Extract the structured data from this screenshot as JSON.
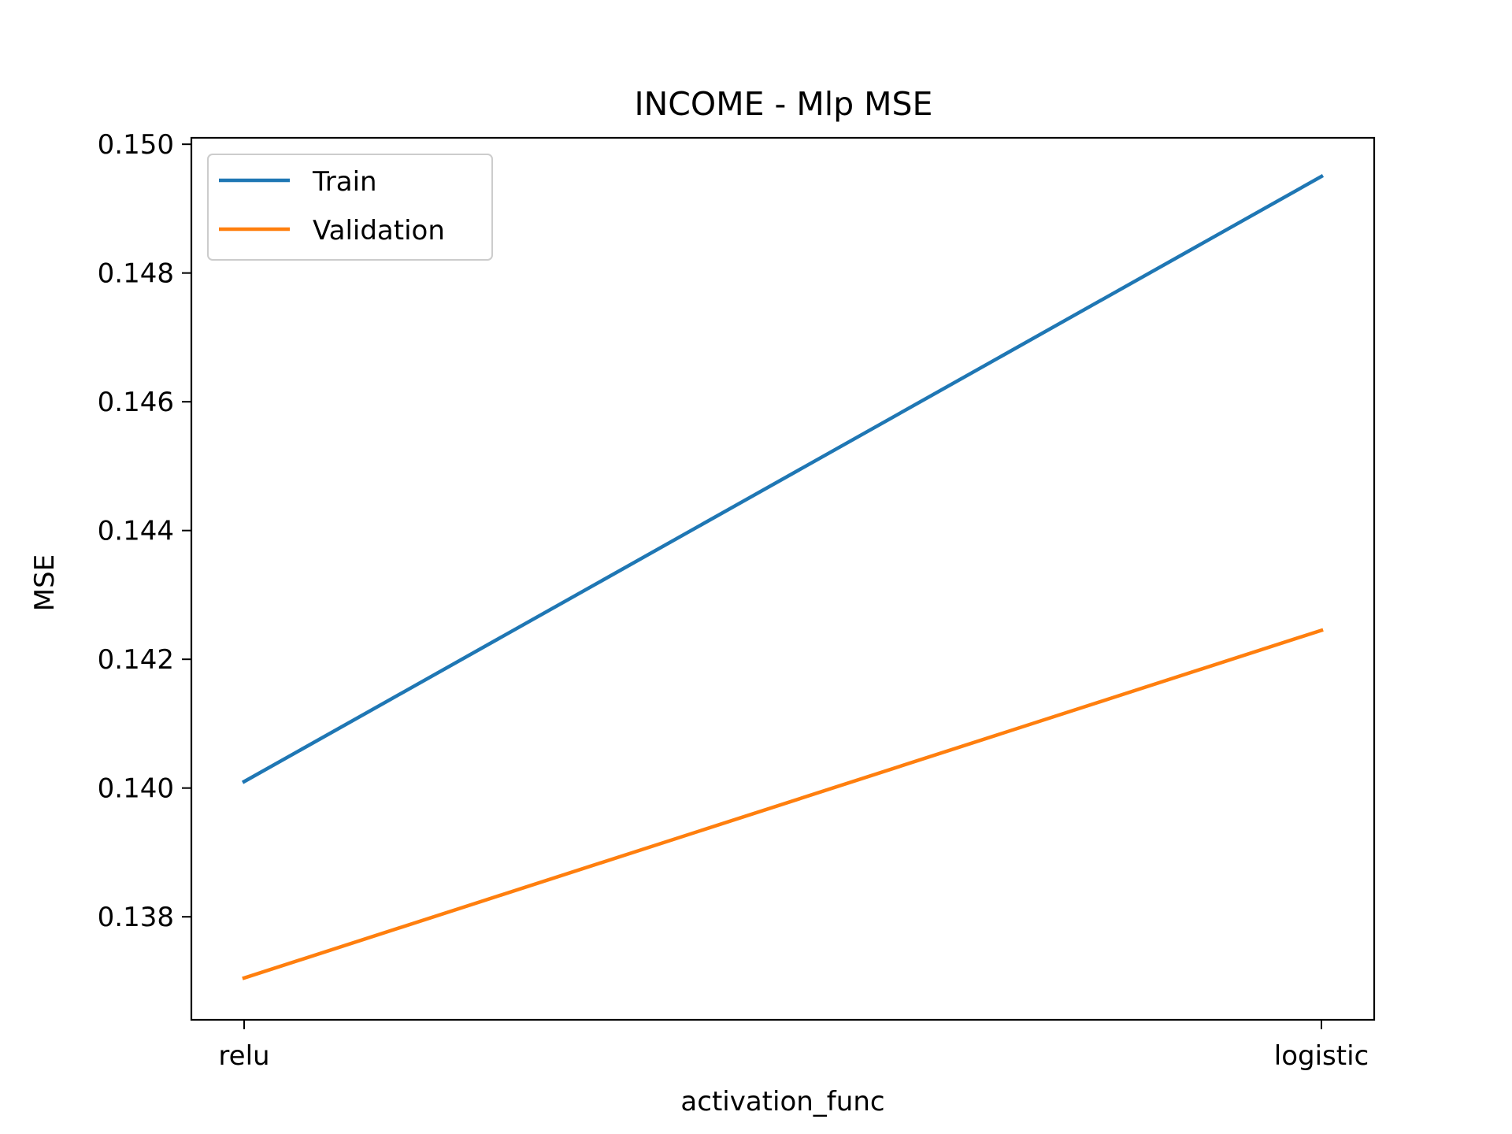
{
  "chart_data": {
    "type": "line",
    "title": "INCOME - Mlp MSE",
    "xlabel": "activation_func",
    "ylabel": "MSE",
    "categories": [
      "relu",
      "logistic"
    ],
    "series": [
      {
        "name": "Train",
        "color": "#1f77b4",
        "values": [
          0.1401,
          0.1495
        ]
      },
      {
        "name": "Validation",
        "color": "#ff7f0e",
        "values": [
          0.13705,
          0.14245
        ]
      }
    ],
    "ylim": [
      0.1364,
      0.1501
    ],
    "yticks": [
      {
        "value": 0.138,
        "label": "0.138"
      },
      {
        "value": 0.14,
        "label": "0.140"
      },
      {
        "value": 0.142,
        "label": "0.142"
      },
      {
        "value": 0.144,
        "label": "0.144"
      },
      {
        "value": 0.146,
        "label": "0.146"
      },
      {
        "value": 0.148,
        "label": "0.148"
      },
      {
        "value": 0.15,
        "label": "0.150"
      }
    ],
    "grid": false,
    "legend_position": "top-left"
  }
}
